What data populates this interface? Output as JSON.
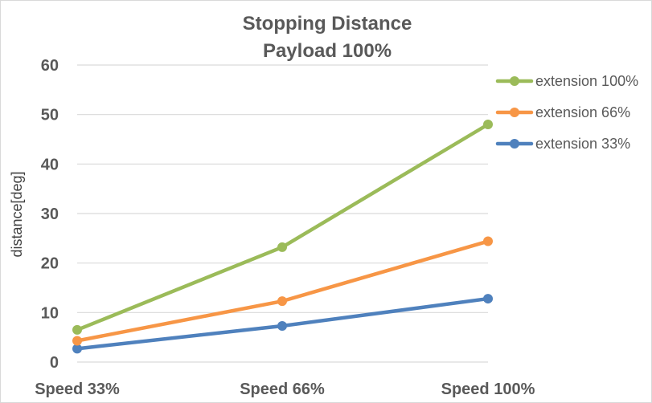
{
  "chart_data": {
    "type": "line",
    "title": "Stopping Distance",
    "subtitle": "Payload 100%",
    "xlabel": "",
    "ylabel": "distance[deg]",
    "categories": [
      "Speed 33%",
      "Speed 66%",
      "Speed 100%"
    ],
    "ylim": [
      0,
      60
    ],
    "yticks": [
      0,
      10,
      20,
      30,
      40,
      50,
      60
    ],
    "grid": true,
    "legend_position": "right",
    "series": [
      {
        "name": "extension 100%",
        "values": [
          6.5,
          23.2,
          48.0
        ],
        "color": "#9bbb59"
      },
      {
        "name": "extension 66%",
        "values": [
          4.3,
          12.3,
          24.4
        ],
        "color": "#f79646"
      },
      {
        "name": "extension 33%",
        "values": [
          2.7,
          7.3,
          12.8
        ],
        "color": "#4f81bd"
      }
    ],
    "gridline_color": "#d9d9d9",
    "text_color": "#595959"
  }
}
